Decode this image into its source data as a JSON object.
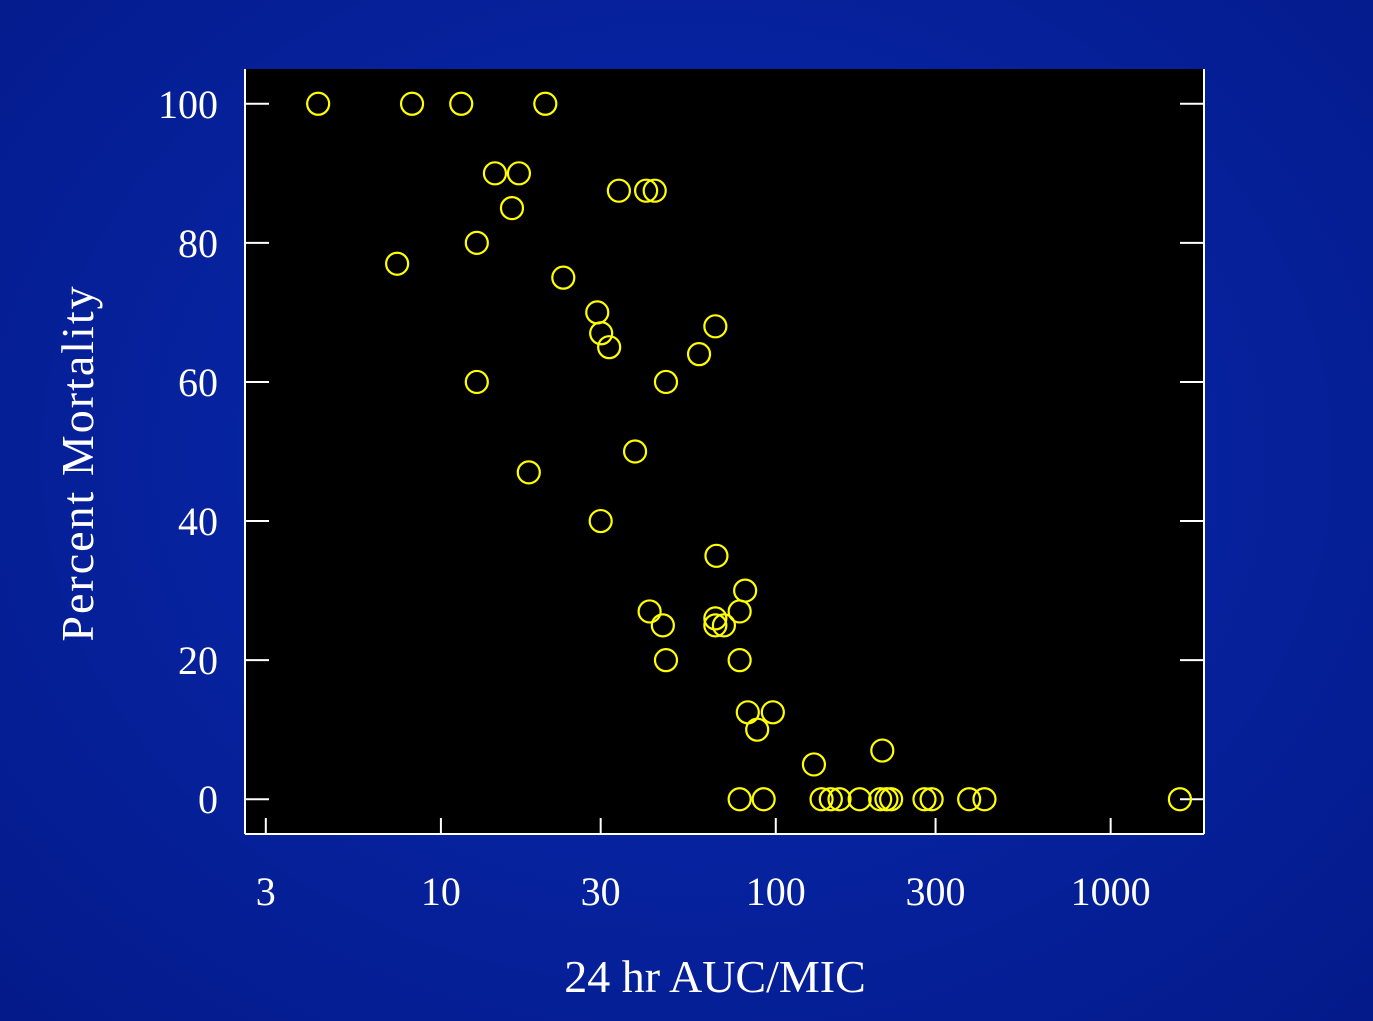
{
  "chart_data": {
    "type": "scatter",
    "xlabel": "24 hr AUC/MIC",
    "ylabel": "Percent Mortality",
    "x_scale": "log",
    "xlim": [
      2.6,
      1900
    ],
    "ylim": [
      -5,
      105
    ],
    "x_ticks": [
      {
        "value": 3,
        "label": "3"
      },
      {
        "value": 10,
        "label": "10"
      },
      {
        "value": 30,
        "label": "30"
      },
      {
        "value": 100,
        "label": "100"
      },
      {
        "value": 300,
        "label": "300"
      },
      {
        "value": 1000,
        "label": "1000"
      }
    ],
    "y_ticks": [
      {
        "value": 0,
        "label": "0"
      },
      {
        "value": 20,
        "label": "20"
      },
      {
        "value": 40,
        "label": "40"
      },
      {
        "value": 60,
        "label": "60"
      },
      {
        "value": 80,
        "label": "80"
      },
      {
        "value": 100,
        "label": "100"
      }
    ],
    "grid": false,
    "colors": {
      "background": "#0623a0",
      "plot_area": "#000000",
      "axis": "#ffffff",
      "marker": "#ffff00"
    },
    "series": [
      {
        "marker": "open-circle",
        "points": [
          {
            "x": 4.3,
            "y": 100
          },
          {
            "x": 8.2,
            "y": 100
          },
          {
            "x": 11.5,
            "y": 100
          },
          {
            "x": 20.5,
            "y": 100
          },
          {
            "x": 14.5,
            "y": 90
          },
          {
            "x": 17.1,
            "y": 90
          },
          {
            "x": 16.3,
            "y": 85
          },
          {
            "x": 34,
            "y": 87.5
          },
          {
            "x": 41,
            "y": 87.5
          },
          {
            "x": 43.5,
            "y": 87.5
          },
          {
            "x": 12.8,
            "y": 80
          },
          {
            "x": 7.4,
            "y": 77
          },
          {
            "x": 23.2,
            "y": 75
          },
          {
            "x": 29.3,
            "y": 70
          },
          {
            "x": 30.1,
            "y": 67
          },
          {
            "x": 31.8,
            "y": 65
          },
          {
            "x": 59,
            "y": 64
          },
          {
            "x": 66,
            "y": 68
          },
          {
            "x": 47,
            "y": 60
          },
          {
            "x": 12.8,
            "y": 60
          },
          {
            "x": 38,
            "y": 50
          },
          {
            "x": 18.3,
            "y": 47
          },
          {
            "x": 30,
            "y": 40
          },
          {
            "x": 66.5,
            "y": 35
          },
          {
            "x": 81,
            "y": 30
          },
          {
            "x": 42,
            "y": 27
          },
          {
            "x": 78,
            "y": 27
          },
          {
            "x": 66,
            "y": 26
          },
          {
            "x": 66,
            "y": 25
          },
          {
            "x": 70,
            "y": 25
          },
          {
            "x": 46,
            "y": 25
          },
          {
            "x": 47,
            "y": 20
          },
          {
            "x": 78,
            "y": 20
          },
          {
            "x": 82.5,
            "y": 12.5
          },
          {
            "x": 98,
            "y": 12.5
          },
          {
            "x": 88,
            "y": 10
          },
          {
            "x": 130,
            "y": 5
          },
          {
            "x": 208,
            "y": 7
          },
          {
            "x": 78,
            "y": 0
          },
          {
            "x": 92,
            "y": 0
          },
          {
            "x": 137,
            "y": 0
          },
          {
            "x": 146,
            "y": 0
          },
          {
            "x": 155,
            "y": 0
          },
          {
            "x": 178,
            "y": 0
          },
          {
            "x": 205,
            "y": 0
          },
          {
            "x": 214,
            "y": 0
          },
          {
            "x": 221,
            "y": 0
          },
          {
            "x": 278,
            "y": 0
          },
          {
            "x": 292,
            "y": 0
          },
          {
            "x": 378,
            "y": 0
          },
          {
            "x": 420,
            "y": 0
          },
          {
            "x": 1610,
            "y": 0
          }
        ]
      }
    ]
  }
}
